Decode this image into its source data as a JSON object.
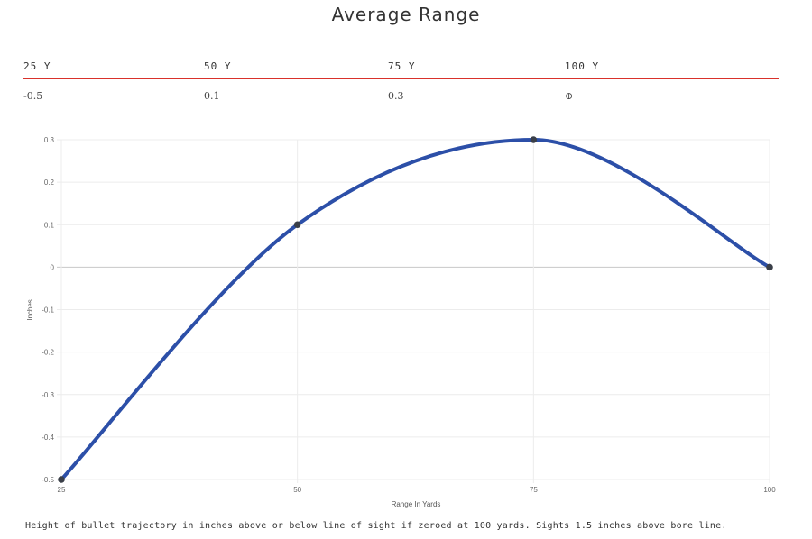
{
  "title": "Average Range",
  "table": {
    "headers": [
      "25 Y",
      "50 Y",
      "75 Y",
      "100 Y"
    ],
    "values": [
      "-0.5",
      "0.1",
      "0.3"
    ],
    "zero_icon": "⊕",
    "zero_icon_name": "crosshair-icon"
  },
  "chart_data": {
    "type": "line",
    "x": [
      25,
      50,
      75,
      100
    ],
    "series": [
      {
        "values": [
          -0.5,
          0.1,
          0.3,
          0.0
        ],
        "color": "#2c4fa8"
      }
    ],
    "xlabel": "Range In Yards",
    "ylabel": "Inches",
    "x_ticks": [
      "25",
      "50",
      "75",
      "100"
    ],
    "y_ticks": [
      "0.3",
      "0.2",
      "0.1",
      "0",
      "-0.1",
      "-0.2",
      "-0.3",
      "-0.4",
      "-0.5"
    ],
    "y_tick_values": [
      0.3,
      0.2,
      0.1,
      0,
      -0.1,
      -0.2,
      -0.3,
      -0.4,
      -0.5
    ],
    "xlim": [
      25,
      100
    ],
    "ylim": [
      -0.5,
      0.3
    ],
    "grid": true,
    "legend": "none"
  },
  "footnote": "Height of bullet trajectory in inches above or below line of sight if zeroed at 100 yards. Sights 1.5 inches above bore line."
}
